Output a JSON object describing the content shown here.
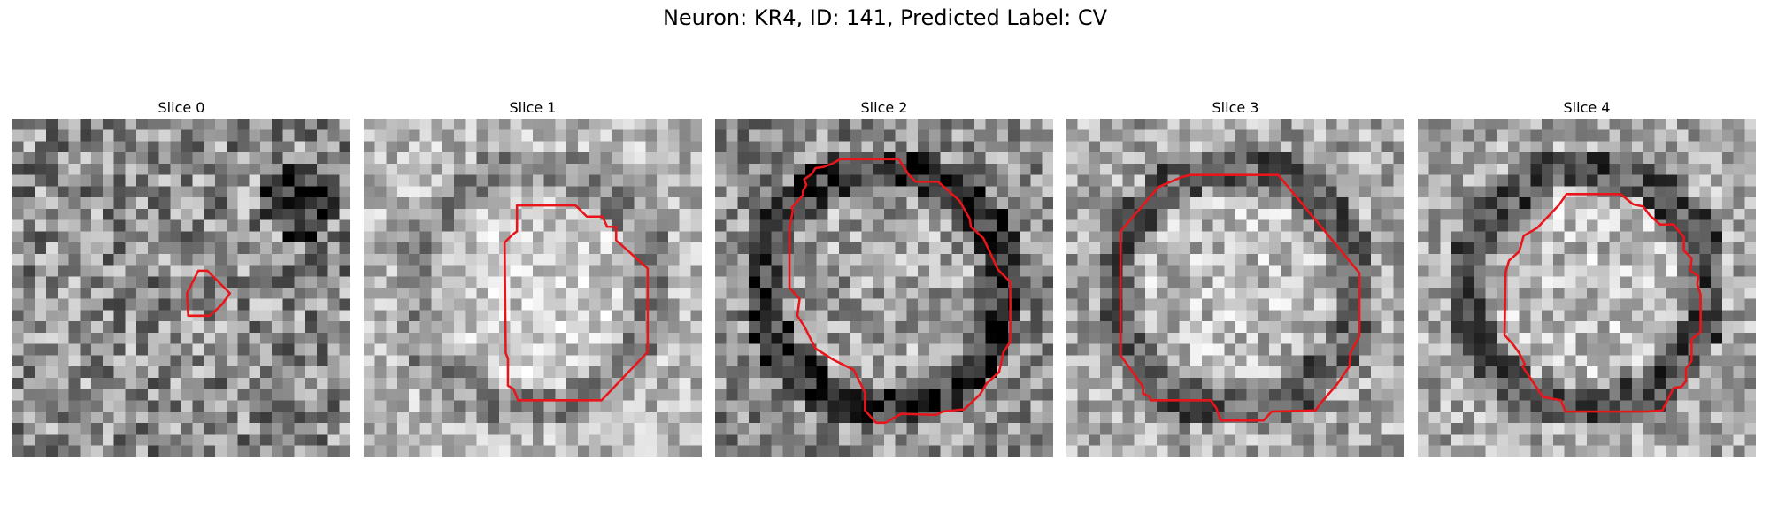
{
  "figure": {
    "title": "Neuron: KR4, ID: 141, Predicted Label: CV"
  },
  "colors": {
    "contour": "#e8161b"
  },
  "panels": [
    {
      "title": "Slice 0",
      "seed": 11,
      "mean": 0.55,
      "spread": 0.32,
      "darkspot": true,
      "ring": false
    },
    {
      "title": "Slice 1",
      "seed": 23,
      "mean": 0.72,
      "spread": 0.22,
      "darkspot": false,
      "ring": true,
      "ringStrength": 0.18
    },
    {
      "title": "Slice 2",
      "seed": 37,
      "mean": 0.55,
      "spread": 0.28,
      "darkspot": false,
      "ring": true,
      "ringStrength": 0.35
    },
    {
      "title": "Slice 3",
      "seed": 41,
      "mean": 0.65,
      "spread": 0.25,
      "darkspot": false,
      "ring": true,
      "ringStrength": 0.28
    },
    {
      "title": "Slice 4",
      "seed": 53,
      "mean": 0.66,
      "spread": 0.25,
      "darkspot": false,
      "ring": true,
      "ringStrength": 0.35
    }
  ]
}
